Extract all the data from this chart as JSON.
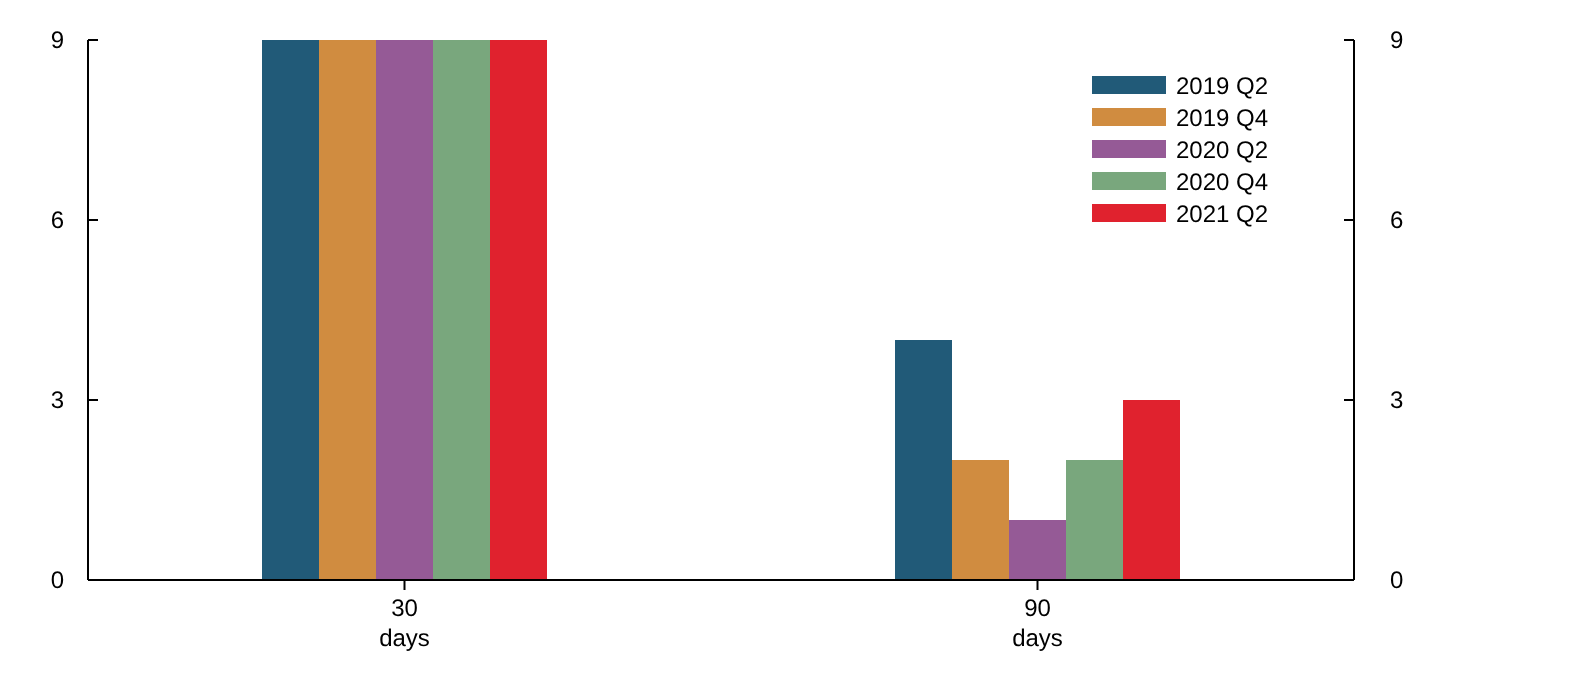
{
  "chart_data": {
    "type": "bar",
    "categories": [
      "30\ndays",
      "90\ndays"
    ],
    "series": [
      {
        "name": "2019 Q2",
        "color": "#215a78",
        "values": [
          9,
          4
        ]
      },
      {
        "name": "2019 Q4",
        "color": "#d08c40",
        "values": [
          9,
          2
        ]
      },
      {
        "name": "2020 Q2",
        "color": "#955a96",
        "values": [
          9,
          1
        ]
      },
      {
        "name": "2020 Q4",
        "color": "#79a77d",
        "values": [
          9,
          2
        ]
      },
      {
        "name": "2021 Q2",
        "color": "#e0222e",
        "values": [
          9,
          3
        ]
      }
    ],
    "ylim": [
      0,
      9
    ],
    "yticks": [
      0,
      3,
      6,
      9
    ],
    "y2lim": [
      0,
      9
    ],
    "y2ticks": [
      0,
      3,
      6,
      9
    ],
    "grid": false,
    "legend": "top right"
  }
}
